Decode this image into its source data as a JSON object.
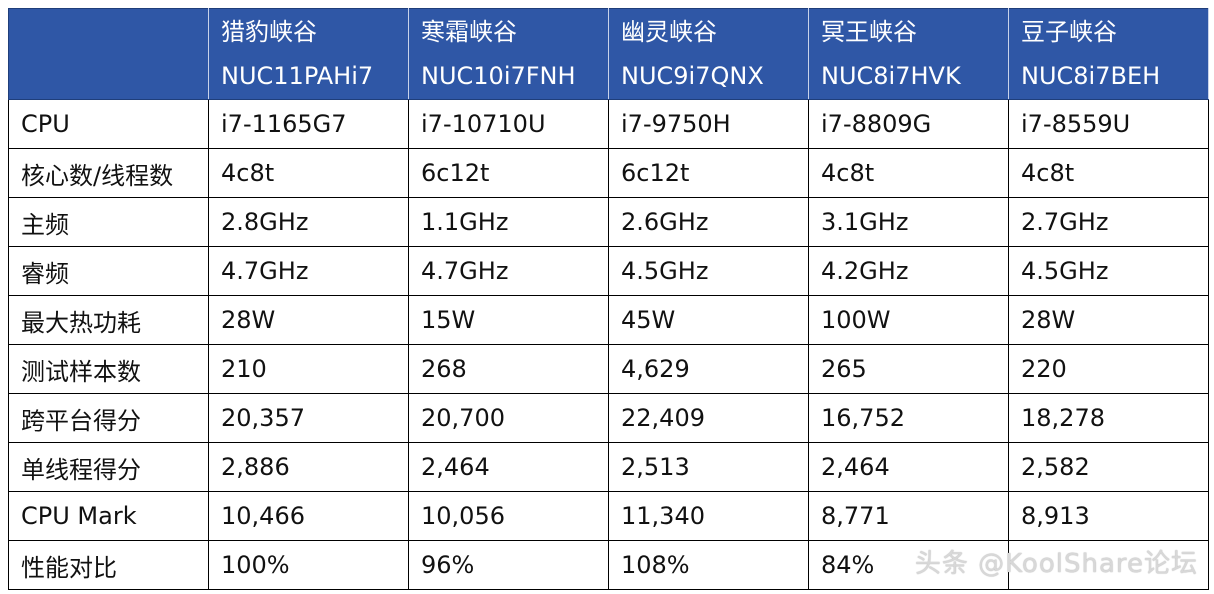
{
  "table": {
    "columns": [
      {
        "name": "猎豹峡谷",
        "model": "NUC11PAHi7"
      },
      {
        "name": "寒霜峡谷",
        "model": "NUC10i7FNH"
      },
      {
        "name": "幽灵峡谷",
        "model": "NUC9i7QNX"
      },
      {
        "name": "冥王峡谷",
        "model": "NUC8i7HVK"
      },
      {
        "name": "豆子峡谷",
        "model": "NUC8i7BEH"
      }
    ],
    "rows": [
      {
        "label": "CPU",
        "values": [
          "i7-1165G7",
          "i7-10710U",
          "i7-9750H",
          "i7-8809G",
          "i7-8559U"
        ]
      },
      {
        "label": "核心数/线程数",
        "values": [
          "4c8t",
          "6c12t",
          "6c12t",
          "4c8t",
          "4c8t"
        ]
      },
      {
        "label": "主频",
        "values": [
          "2.8GHz",
          "1.1GHz",
          "2.6GHz",
          "3.1GHz",
          "2.7GHz"
        ]
      },
      {
        "label": "睿频",
        "values": [
          "4.7GHz",
          "4.7GHz",
          "4.5GHz",
          "4.2GHz",
          "4.5GHz"
        ]
      },
      {
        "label": "最大热功耗",
        "values": [
          "28W",
          "15W",
          "45W",
          "100W",
          "28W"
        ]
      },
      {
        "label": "测试样本数",
        "values": [
          "210",
          "268",
          "4,629",
          "265",
          "220"
        ]
      },
      {
        "label": "跨平台得分",
        "values": [
          "20,357",
          "20,700",
          "22,409",
          "16,752",
          "18,278"
        ]
      },
      {
        "label": "单线程得分",
        "values": [
          "2,886",
          "2,464",
          "2,513",
          "2,464",
          "2,582"
        ]
      },
      {
        "label": "CPU Mark",
        "values": [
          "10,466",
          "10,056",
          "11,340",
          "8,771",
          "8,913"
        ]
      },
      {
        "label": "性能对比",
        "values": [
          "100%",
          "96%",
          "108%",
          "84%",
          ""
        ]
      }
    ]
  },
  "watermark": "头条 @KoolShare论坛",
  "colors": {
    "header_bg": "#2f57a6",
    "header_text": "#ffffff"
  }
}
